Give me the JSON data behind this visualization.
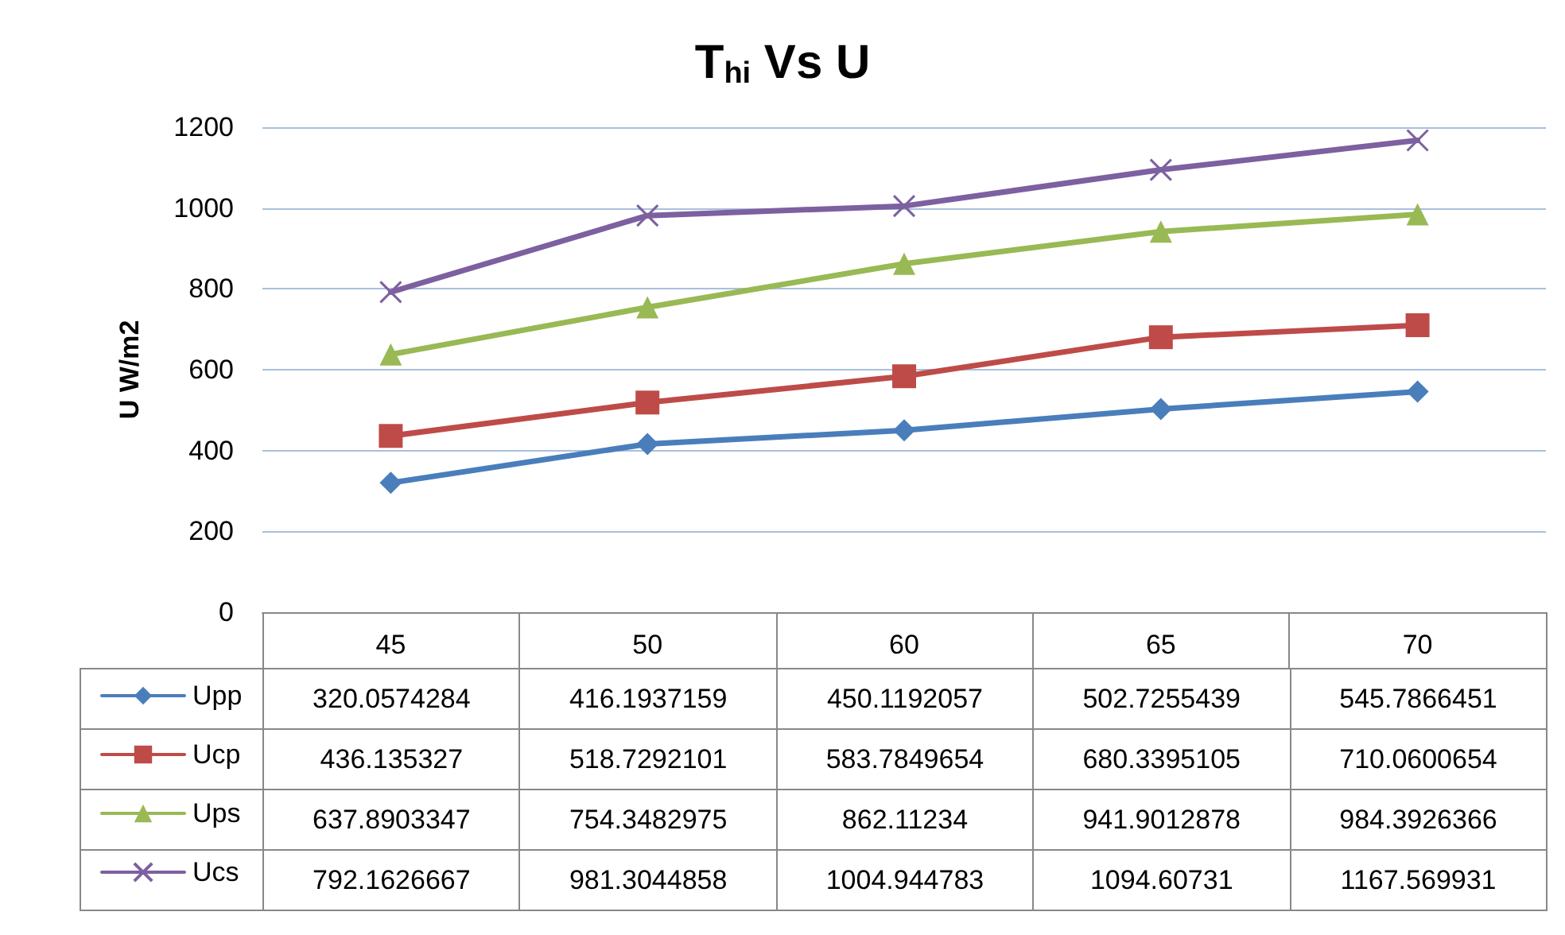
{
  "chart_data": {
    "type": "line",
    "title": "T$_{hi}$ Vs U",
    "ylabel": "U W/m2",
    "categories": [
      "45",
      "50",
      "60",
      "65",
      "70"
    ],
    "ylim": [
      0,
      1200
    ],
    "yticks": [
      0,
      200,
      400,
      600,
      800,
      1000,
      1200
    ],
    "grid": "y",
    "legend": "bottom left",
    "data_labels": true,
    "line_style": "solid",
    "series": [
      {
        "name": "Upp",
        "color": "#4a7ebb",
        "marker": "diamond",
        "values": [
          320.0574284,
          416.1937159,
          450.1192057,
          502.7255439,
          545.7866451
        ]
      },
      {
        "name": "Ucp",
        "color": "#be4b48",
        "marker": "square",
        "values": [
          436.135327,
          518.7292101,
          583.7849654,
          680.3395105,
          710.0600654
        ]
      },
      {
        "name": "Ups",
        "color": "#98b954",
        "marker": "triangle",
        "values": [
          637.8903347,
          754.3482975,
          862.11234,
          941.9012878,
          984.3926366
        ]
      },
      {
        "name": "Ucs",
        "color": "#7d60a0",
        "marker": "cross",
        "values": [
          792.1626667,
          981.3044858,
          1004.944783,
          1094.60731,
          1167.569931
        ]
      }
    ]
  }
}
